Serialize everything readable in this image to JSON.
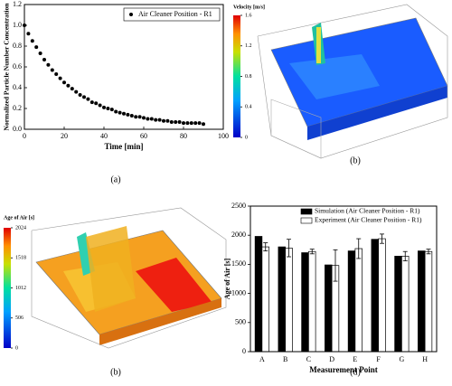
{
  "chart_data": [
    {
      "type": "scatter",
      "x_label": "Time [min]",
      "y_label": "Normalized Particle Number Concentration",
      "xlim": [
        0,
        100
      ],
      "xticks": [
        0,
        20,
        40,
        60,
        80,
        100
      ],
      "ylim": [
        0,
        1.2
      ],
      "yticks": [
        {
          "value": 0,
          "label": "0.0"
        },
        0.2,
        0.4,
        0.6,
        0.8,
        {
          "value": 1,
          "label": "1.0"
        },
        1.2
      ],
      "legend": "upper-right",
      "series": [
        {
          "name": "Air Cleaner Position - R1",
          "color": "#000000",
          "x": [
            0,
            2,
            4,
            6,
            8,
            10,
            12,
            14,
            16,
            18,
            20,
            22,
            24,
            26,
            28,
            30,
            32,
            34,
            36,
            38,
            40,
            42,
            44,
            46,
            48,
            50,
            52,
            54,
            56,
            58,
            60,
            62,
            64,
            66,
            68,
            70,
            72,
            74,
            76,
            78,
            80,
            82,
            84,
            86,
            88,
            90
          ],
          "values": [
            1.0,
            0.92,
            0.85,
            0.79,
            0.73,
            0.67,
            0.62,
            0.57,
            0.53,
            0.49,
            0.45,
            0.42,
            0.39,
            0.36,
            0.33,
            0.31,
            0.29,
            0.26,
            0.25,
            0.23,
            0.21,
            0.2,
            0.19,
            0.17,
            0.16,
            0.15,
            0.14,
            0.13,
            0.12,
            0.12,
            0.11,
            0.1,
            0.1,
            0.09,
            0.09,
            0.08,
            0.08,
            0.07,
            0.07,
            0.07,
            0.06,
            0.06,
            0.06,
            0.06,
            0.06,
            0.05
          ]
        }
      ]
    },
    {
      "type": "bar",
      "x_label": "Measurement Point",
      "y_label": "Age of Air [s]",
      "categories": [
        "A",
        "B",
        "C",
        "D",
        "E",
        "F",
        "G",
        "H"
      ],
      "ylim": [
        0,
        2500
      ],
      "yticks": [
        0,
        500,
        1000,
        1500,
        2000,
        2500
      ],
      "legend": "upper-right",
      "series": [
        {
          "name": "Simulation (Air Cleaner Position - R1)",
          "color": "#000000",
          "values": [
            1980,
            1800,
            1700,
            1490,
            1730,
            1930,
            1640,
            1730
          ]
        },
        {
          "name": "Experiment (Air Cleaner Position - R1)",
          "color": "#ffffff",
          "values": [
            1800,
            1780,
            1720,
            1480,
            1770,
            1940,
            1640,
            1720
          ],
          "errors": [
            70,
            150,
            40,
            270,
            170,
            80,
            80,
            40
          ]
        }
      ]
    }
  ],
  "cfd_panels": [
    {
      "title": "Velocity [m/s]",
      "ticks": [
        0,
        0.4,
        0.8,
        1.2,
        1.6
      ]
    },
    {
      "title": "Age of Air [s]",
      "ticks": [
        0,
        506,
        1012,
        1518,
        2024
      ]
    }
  ],
  "panel_labels": [
    "(a)",
    "(b)",
    "(b)",
    "(d)"
  ]
}
